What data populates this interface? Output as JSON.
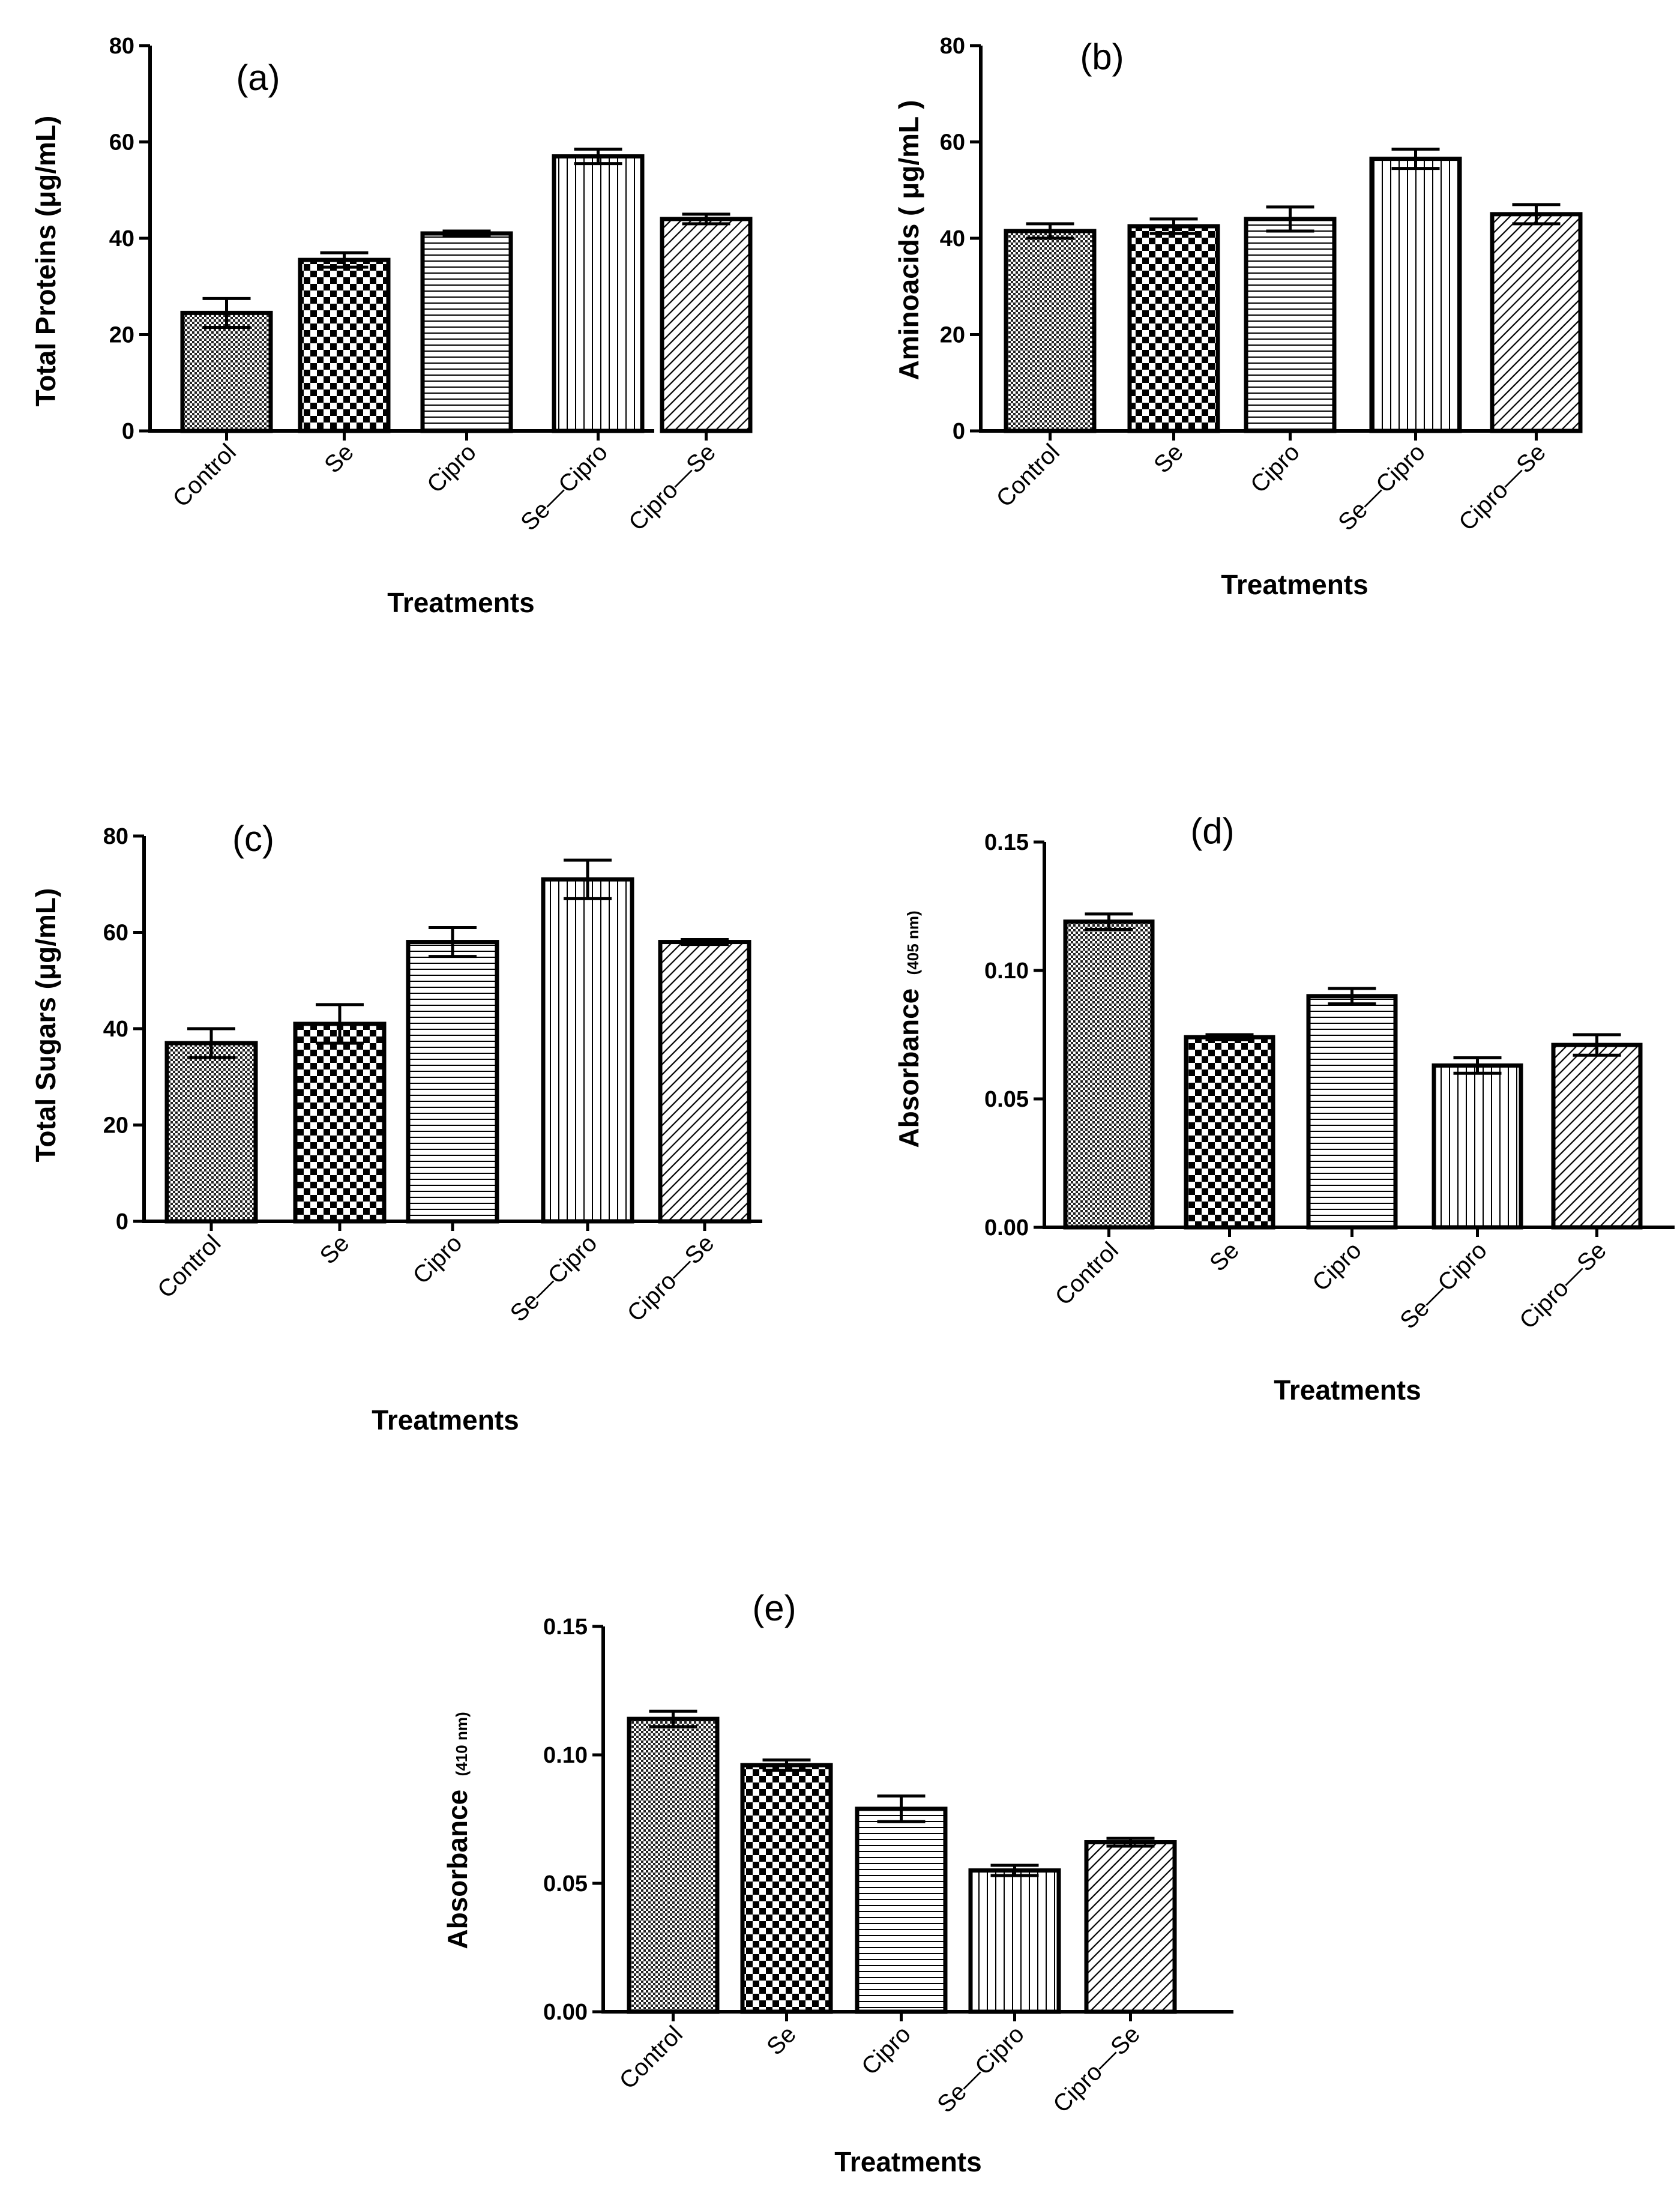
{
  "figure": {
    "panels": [
      "(a)",
      "(b)",
      "(c)",
      "(d)",
      "(e)"
    ]
  },
  "chart_data": [
    {
      "id": "a",
      "type": "bar",
      "title": "(a)",
      "xlabel": "Treatments",
      "ylabel": "Total Proteins (μg/mL)",
      "ylabel_unit": "",
      "categories": [
        "Control",
        "Se",
        "Cipro",
        "Se—Cipro",
        "Cipro—Se"
      ],
      "values": [
        24.5,
        35.5,
        41.0,
        57.0,
        44.0
      ],
      "errors": [
        3.0,
        1.5,
        0.5,
        1.5,
        1.0
      ],
      "ylim": [
        0,
        80
      ],
      "yticks": [
        "0",
        "20",
        "40",
        "60",
        "80"
      ],
      "patterns": [
        "fine-check",
        "check",
        "hlines",
        "vlines",
        "diag"
      ]
    },
    {
      "id": "b",
      "type": "bar",
      "title": "(b)",
      "xlabel": "Treatments",
      "ylabel": "Aminoacids ( μg/mL )",
      "ylabel_unit": "",
      "categories": [
        "Control",
        "Se",
        "Cipro",
        "Se—Cipro",
        "Cipro—Se"
      ],
      "values": [
        41.5,
        42.5,
        44.0,
        56.5,
        45.0
      ],
      "errors": [
        1.5,
        1.5,
        2.5,
        2.0,
        2.0
      ],
      "ylim": [
        0,
        80
      ],
      "yticks": [
        "0",
        "20",
        "40",
        "60",
        "80"
      ],
      "patterns": [
        "fine-check",
        "check",
        "hlines",
        "vlines",
        "diag"
      ]
    },
    {
      "id": "c",
      "type": "bar",
      "title": "(c)",
      "xlabel": "Treatments",
      "ylabel": "Total Sugars (μg/mL)",
      "ylabel_unit": "",
      "categories": [
        "Control",
        "Se",
        "Cipro",
        "Se—Cipro",
        "Cipro—Se"
      ],
      "values": [
        37.0,
        41.0,
        58.0,
        71.0,
        58.0
      ],
      "errors": [
        3.0,
        4.0,
        3.0,
        4.0,
        0.5
      ],
      "ylim": [
        0,
        80
      ],
      "yticks": [
        "0",
        "20",
        "40",
        "60",
        "80"
      ],
      "patterns": [
        "fine-check",
        "check",
        "hlines",
        "vlines",
        "diag"
      ]
    },
    {
      "id": "d",
      "type": "bar",
      "title": "(d)",
      "xlabel": "Treatments",
      "ylabel": "Absorbance",
      "ylabel_unit": "(405 nm)",
      "categories": [
        "Control",
        "Se",
        "Cipro",
        "Se—Cipro",
        "Cipro—Se"
      ],
      "values": [
        0.119,
        0.074,
        0.09,
        0.063,
        0.071
      ],
      "errors": [
        0.003,
        0.001,
        0.003,
        0.003,
        0.004
      ],
      "ylim": [
        0,
        0.15
      ],
      "yticks": [
        "0.00",
        "0.05",
        "0.10",
        "0.15"
      ],
      "patterns": [
        "fine-check",
        "check",
        "hlines",
        "vlines",
        "diag"
      ]
    },
    {
      "id": "e",
      "type": "bar",
      "title": "(e)",
      "xlabel": "Treatments",
      "ylabel": "Absorbance",
      "ylabel_unit": "(410 nm)",
      "categories": [
        "Control",
        "Se",
        "Cipro",
        "Se—Cipro",
        "Cipro—Se"
      ],
      "values": [
        0.114,
        0.096,
        0.079,
        0.055,
        0.066
      ],
      "errors": [
        0.003,
        0.002,
        0.005,
        0.002,
        0.0015
      ],
      "ylim": [
        0,
        0.15
      ],
      "yticks": [
        "0.00",
        "0.05",
        "0.10",
        "0.15"
      ],
      "patterns": [
        "fine-check",
        "check",
        "hlines",
        "vlines",
        "diag"
      ]
    }
  ]
}
